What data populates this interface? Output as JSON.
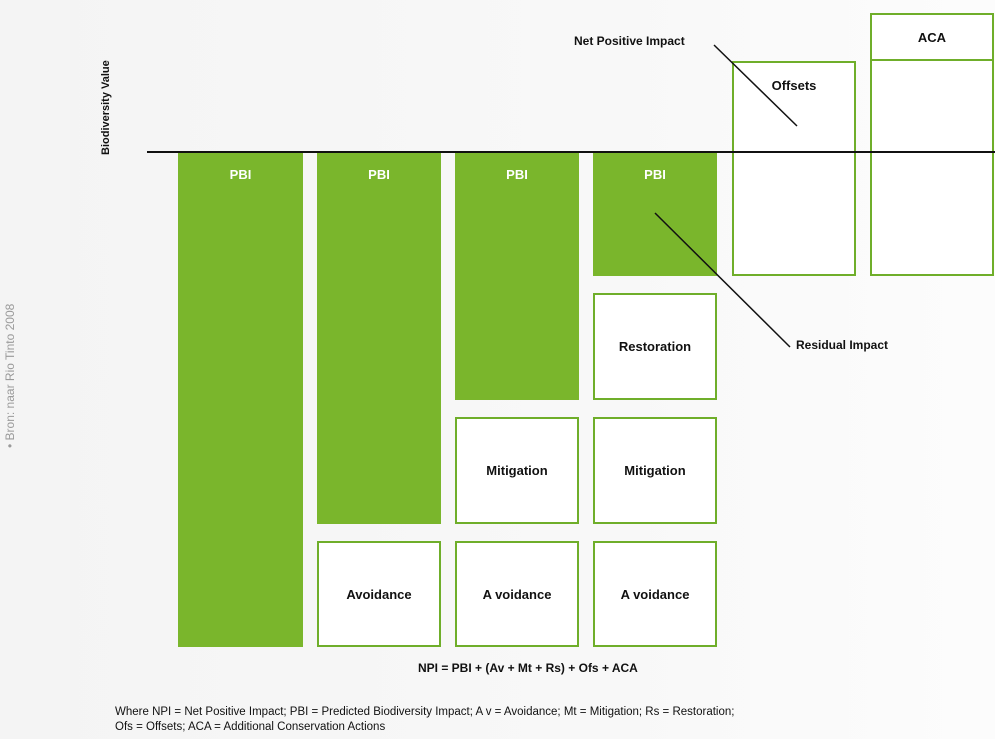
{
  "diagram": {
    "y_axis_label": "Biodiversity Value",
    "source_note": "• Bron: naar Rio Tinto 2008",
    "blocks": {
      "pbi": "PBI",
      "avoidance": "Avoidance",
      "avoidance_spaced": "A voidance",
      "mitigation": "Mitigation",
      "restoration": "Restoration",
      "offsets": "Offsets",
      "aca": "ACA"
    },
    "callouts": {
      "net_positive_impact": "Net Positive Impact",
      "residual_impact": "Residual Impact"
    },
    "formula": "NPI = PBI + (Av + Mt + Rs) + Ofs + ACA",
    "footnote_line1": "Where NPI = Net Positive Impact; PBI = Predicted Biodiversity Impact; A v = Avoidance; Mt = Mitigation; Rs = Restoration;",
    "footnote_line2": "Ofs = Offsets; ACA = Additional Conservation Actions"
  }
}
